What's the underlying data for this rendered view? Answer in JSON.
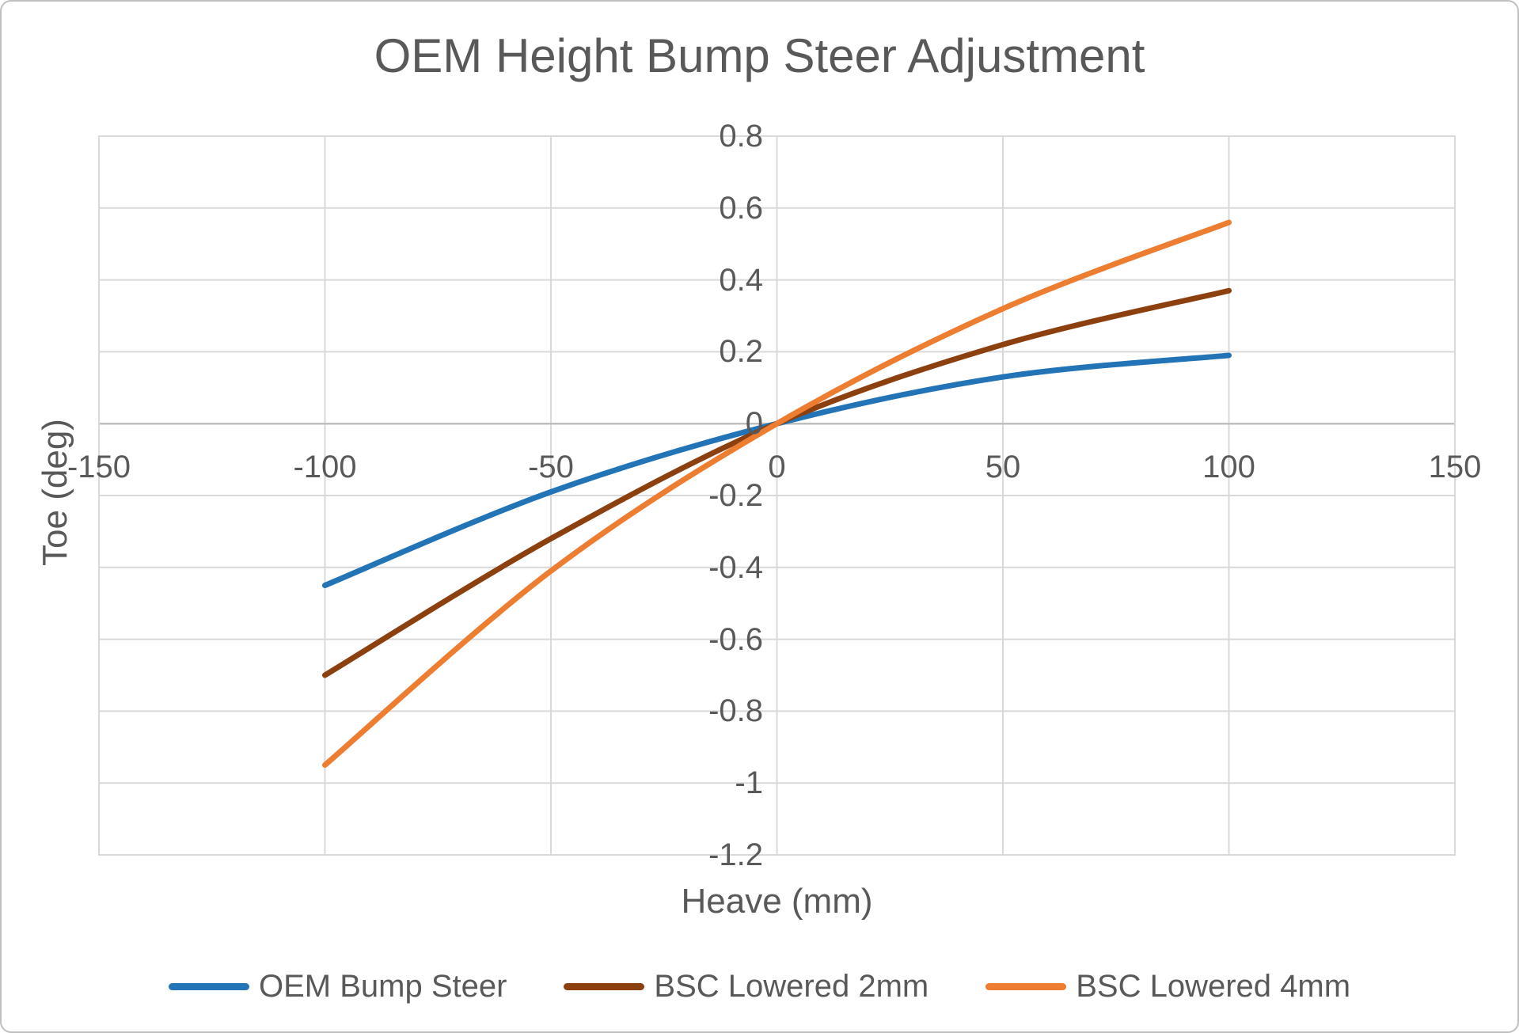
{
  "chart_data": {
    "type": "line",
    "title": "OEM Height Bump Steer Adjustment",
    "xlabel": "Heave (mm)",
    "ylabel": "Toe (deg)",
    "x": [
      -100,
      -50,
      0,
      50,
      100
    ],
    "series": [
      {
        "name": "OEM Bump Steer",
        "color": "#2274B6",
        "values": [
          -0.45,
          -0.19,
          0,
          0.13,
          0.19
        ]
      },
      {
        "name": "BSC Lowered 2mm",
        "color": "#8C400F",
        "values": [
          -0.7,
          -0.32,
          0,
          0.22,
          0.37
        ]
      },
      {
        "name": "BSC Lowered 4mm",
        "color": "#ED7D31",
        "values": [
          -0.95,
          -0.41,
          0,
          0.32,
          0.56
        ]
      }
    ],
    "xlim": [
      -150,
      150
    ],
    "ylim": [
      -1.2,
      0.8
    ],
    "x_ticks": [
      -150,
      -100,
      -50,
      0,
      50,
      100,
      150
    ],
    "y_ticks": [
      0.8,
      0.6,
      0.4,
      0.2,
      0,
      -0.2,
      -0.4,
      -0.6,
      -0.8,
      -1,
      -1.2
    ],
    "grid": true,
    "smooth": true,
    "legend_position": "bottom",
    "colors": {
      "text": "#595959",
      "gridline": "#D9D9D9",
      "axis_line": "#BFBFBF",
      "background": "#FFFFFF",
      "border": "#BFBFBF"
    }
  }
}
